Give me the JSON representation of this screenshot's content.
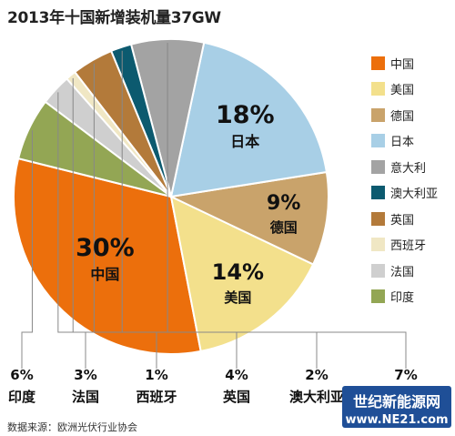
{
  "title": "2013年十国新增装机量37GW",
  "source": "数据来源：欧洲光伏行业协会",
  "watermark": {
    "line1": "世纪新能源网",
    "line2": "www.NE21.com"
  },
  "chart_data": {
    "type": "pie",
    "title": "2013年十国新增装机量37GW",
    "slices": [
      {
        "name": "中国",
        "value": 30,
        "label": "30%",
        "color": "#ec6f0c",
        "label_color": "#111111"
      },
      {
        "name": "美国",
        "value": 14,
        "label": "14%",
        "color": "#f3e08c",
        "label_color": "#111111"
      },
      {
        "name": "德国",
        "value": 9,
        "label": "9%",
        "color": "#c9a36b",
        "label_color": "#111111"
      },
      {
        "name": "日本",
        "value": 18,
        "label": "18%",
        "color": "#a8cfe6",
        "label_color": "#111111"
      },
      {
        "name": "意大利",
        "value": 7,
        "label": "7%",
        "color": "#a3a3a3",
        "label_color": "#111111"
      },
      {
        "name": "澳大利亚",
        "value": 2,
        "label": "2%",
        "color": "#0c5a6f",
        "label_color": "#111111"
      },
      {
        "name": "英国",
        "value": 4,
        "label": "4%",
        "color": "#b37a3a",
        "label_color": "#111111"
      },
      {
        "name": "西班牙",
        "value": 1,
        "label": "1%",
        "color": "#f0e7c4",
        "label_color": "#111111"
      },
      {
        "name": "法国",
        "value": 3,
        "label": "3%",
        "color": "#cfcfcf",
        "label_color": "#111111"
      },
      {
        "name": "印度",
        "value": 6,
        "label": "6%",
        "color": "#93a654",
        "label_color": "#111111"
      }
    ],
    "legend": [
      "中国",
      "美国",
      "德国",
      "日本",
      "意大利",
      "澳大利亚",
      "英国",
      "西班牙",
      "法国",
      "印度"
    ],
    "legend_position": "right"
  }
}
